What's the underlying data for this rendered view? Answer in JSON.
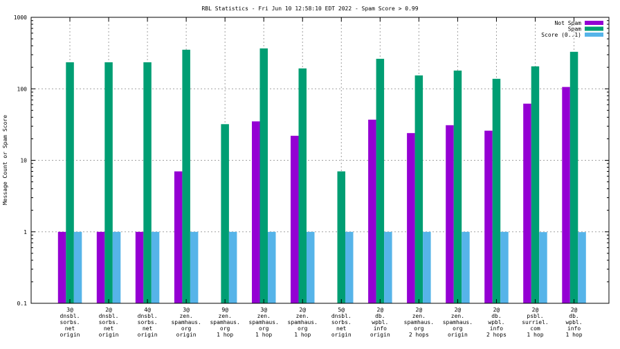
{
  "chart_data": {
    "type": "bar",
    "title": "RBL Statistics - Fri Jun 10 12:58:10 EDT 2022 - Spam Score > 0.99",
    "xlabel": "",
    "ylabel": "Message Count or Spam Score",
    "yscale": "log",
    "ylim": [
      0.1,
      1000
    ],
    "yticks": [
      "0.1",
      "1",
      "10",
      "100",
      "1000"
    ],
    "grid": true,
    "legend_position": "top-right",
    "categories": [
      [
        "3@",
        "dnsbl.",
        "sorbs.",
        "net",
        "origin"
      ],
      [
        "2@",
        "dnsbl.",
        "sorbs.",
        "net",
        "origin"
      ],
      [
        "4@",
        "dnsbl.",
        "sorbs.",
        "net",
        "origin"
      ],
      [
        "3@",
        "zen.",
        "spamhaus.",
        "org",
        "origin"
      ],
      [
        "9@",
        "zen.",
        "spamhaus.",
        "org",
        "1 hop"
      ],
      [
        "3@",
        "zen.",
        "spamhaus.",
        "org",
        "1 hop"
      ],
      [
        "2@",
        "zen.",
        "spamhaus.",
        "org",
        "1 hop"
      ],
      [
        "5@",
        "dnsbl.",
        "sorbs.",
        "net",
        "origin"
      ],
      [
        "2@",
        "db.",
        "wpbl.",
        "info",
        "origin"
      ],
      [
        "2@",
        "zen.",
        "spamhaus.",
        "org",
        "2 hops"
      ],
      [
        "2@",
        "zen.",
        "spamhaus.",
        "org",
        "origin"
      ],
      [
        "2@",
        "db.",
        "wpbl.",
        "info",
        "2 hops"
      ],
      [
        "2@",
        "psbl.",
        "surriel.",
        "com",
        "1 hop"
      ],
      [
        "2@",
        "db.",
        "wpbl.",
        "info",
        "1 hop"
      ]
    ],
    "series": [
      {
        "name": "Not Spam",
        "color": "#9400d3",
        "values": [
          1,
          1,
          1,
          7,
          0,
          35,
          22,
          0,
          37,
          24,
          31,
          26,
          62,
          106
        ]
      },
      {
        "name": "Spam",
        "color": "#009e73",
        "values": [
          235,
          235,
          235,
          352,
          32,
          367,
          193,
          7,
          263,
          154,
          180,
          138,
          206,
          329
        ]
      },
      {
        "name": "Score (0..1)",
        "color": "#56b4e9",
        "values": [
          1,
          1,
          1,
          1,
          1,
          1,
          1,
          1,
          1,
          1,
          1,
          1,
          0.99,
          0.99
        ]
      }
    ]
  }
}
